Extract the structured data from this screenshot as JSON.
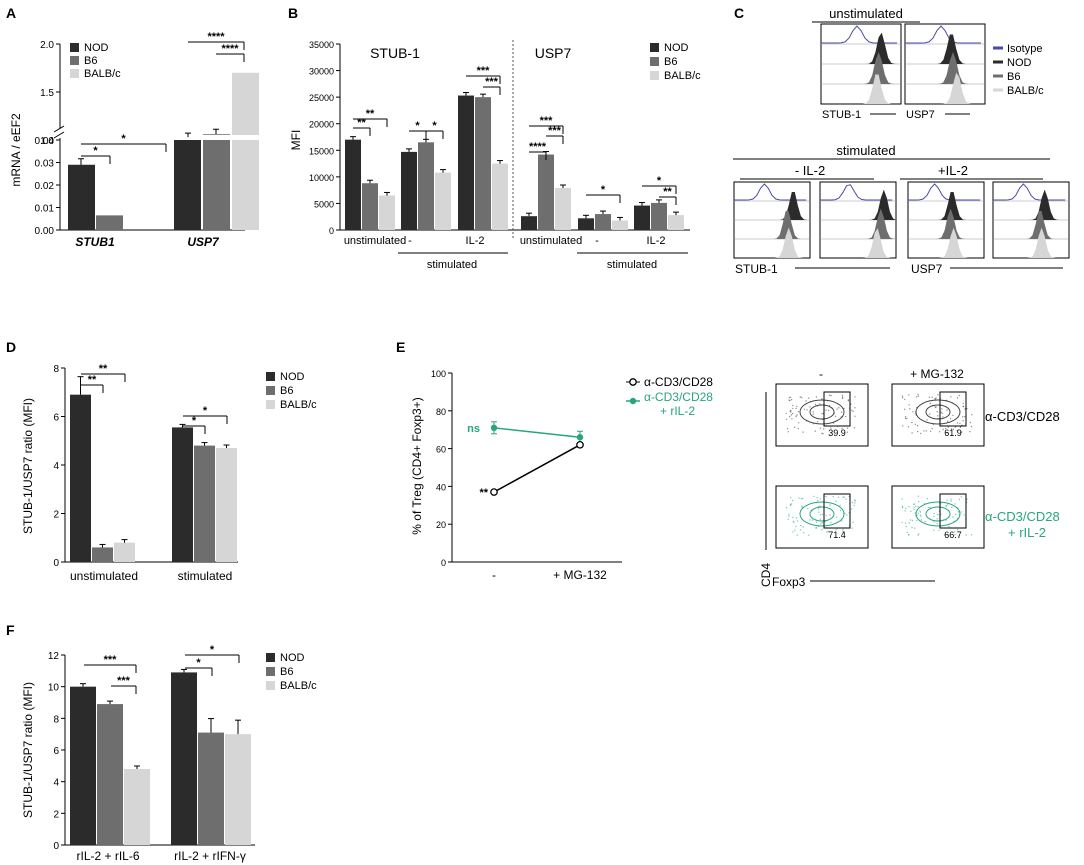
{
  "colors": {
    "NOD": "#2b2b2b",
    "B6": "#6e6e6e",
    "BALBc": "#d6d6d6",
    "isotope": "#4a4aa8",
    "green": "#27a67a"
  },
  "panels": {
    "A": "A",
    "B": "B",
    "C": "C",
    "D": "D",
    "E": "E",
    "F": "F"
  },
  "legend3": {
    "nod": "NOD",
    "b6": "B6",
    "balbc": "BALB/c"
  },
  "chart_data": [
    {
      "panel": "A",
      "type": "bar",
      "ylabel": "mRNA / eEF2",
      "categories": [
        "STUB1",
        "USP7"
      ],
      "series": [
        {
          "name": "NOD",
          "values": [
            0.029,
            1.03
          ]
        },
        {
          "name": "B6",
          "values": [
            0.0065,
            1.06
          ]
        },
        {
          "name": "BALB/c",
          "values": [
            0,
            1.7
          ]
        }
      ],
      "yticks_low": [
        "0.00",
        "0.01",
        "0.02",
        "0.03",
        "0.04"
      ],
      "yticks_high": [
        "1.0",
        "1.5",
        "2.0"
      ],
      "significance": [
        "*",
        "*",
        "****",
        "****"
      ]
    },
    {
      "panel": "B",
      "type": "bar",
      "ylabel": "MFI",
      "subtitles": [
        "STUB-1",
        "USP7"
      ],
      "groups": [
        "unstimulated",
        "-",
        "IL-2",
        "unstimulated",
        "-",
        "IL-2"
      ],
      "group_caption": "stimulated",
      "series": [
        {
          "name": "NOD",
          "values": [
            17000,
            14700,
            25300,
            2600,
            2200,
            4600
          ]
        },
        {
          "name": "B6",
          "values": [
            8800,
            16500,
            25000,
            14200,
            3000,
            5100
          ]
        },
        {
          "name": "BALB/c",
          "values": [
            6500,
            10800,
            12500,
            7900,
            1800,
            2800
          ]
        }
      ],
      "yticks": [
        "0",
        "5000",
        "10000",
        "15000",
        "20000",
        "25000",
        "30000",
        "35000"
      ],
      "ylim": [
        0,
        35000
      ],
      "significance": [
        "**",
        "**",
        "*",
        "*",
        "***",
        "***",
        "****",
        "***",
        "***",
        "*",
        "*",
        "**"
      ]
    },
    {
      "panel": "D",
      "type": "bar",
      "ylabel": "STUB-1/USP7 ratio (MFI)",
      "categories": [
        "unstimulated",
        "stimulated"
      ],
      "series": [
        {
          "name": "NOD",
          "values": [
            6.9,
            5.55
          ]
        },
        {
          "name": "B6",
          "values": [
            0.6,
            4.8
          ]
        },
        {
          "name": "BALB/c",
          "values": [
            0.8,
            4.7
          ]
        }
      ],
      "yticks": [
        "0",
        "2",
        "4",
        "6",
        "8"
      ],
      "ylim": [
        0,
        8
      ],
      "significance": [
        "**",
        "**",
        "*",
        "*"
      ]
    },
    {
      "panel": "E",
      "type": "line",
      "ylabel": "% of Treg (CD4+ Foxp3+)",
      "categories": [
        "-",
        "+ MG-132"
      ],
      "series": [
        {
          "name": "α-CD3/CD28",
          "values": [
            37,
            62
          ]
        },
        {
          "name": "α-CD3/CD28 + rIL-2",
          "values": [
            71,
            66
          ]
        }
      ],
      "yticks": [
        "0",
        "20",
        "40",
        "60",
        "80",
        "100"
      ],
      "ylim": [
        0,
        100
      ],
      "annotations": [
        "**",
        "ns"
      ]
    },
    {
      "panel": "F",
      "type": "bar",
      "ylabel": "STUB-1/USP7 ratio (MFI)",
      "categories": [
        "rIL-2 + rIL-6",
        "rIL-2 + rIFN-γ"
      ],
      "series": [
        {
          "name": "NOD",
          "values": [
            10.0,
            10.9
          ]
        },
        {
          "name": "B6",
          "values": [
            8.9,
            7.1
          ]
        },
        {
          "name": "BALB/c",
          "values": [
            4.8,
            7.0
          ]
        }
      ],
      "yticks": [
        "0",
        "2",
        "4",
        "6",
        "8",
        "10",
        "12"
      ],
      "ylim": [
        0,
        12
      ],
      "significance": [
        "***",
        "***",
        "*",
        "*"
      ]
    }
  ],
  "panelC": {
    "top_title": "unstimulated",
    "legend": [
      "Isotype",
      "NOD",
      "B6",
      "BALB/c"
    ],
    "axis_labels": [
      "STUB-1",
      "USP7"
    ],
    "stim_title": "stimulated",
    "sub_titles": [
      "- IL-2",
      "+IL-2"
    ]
  },
  "panelE_flow": {
    "col_labels": [
      "-",
      "+ MG-132"
    ],
    "row_labels": [
      "α-CD3/CD28",
      "α-CD3/CD28\n+ rIL-2"
    ],
    "gate_values": [
      "39.9",
      "61.9",
      "71.4",
      "66.7"
    ],
    "x_label": "Foxp3",
    "y_label": "CD4"
  }
}
